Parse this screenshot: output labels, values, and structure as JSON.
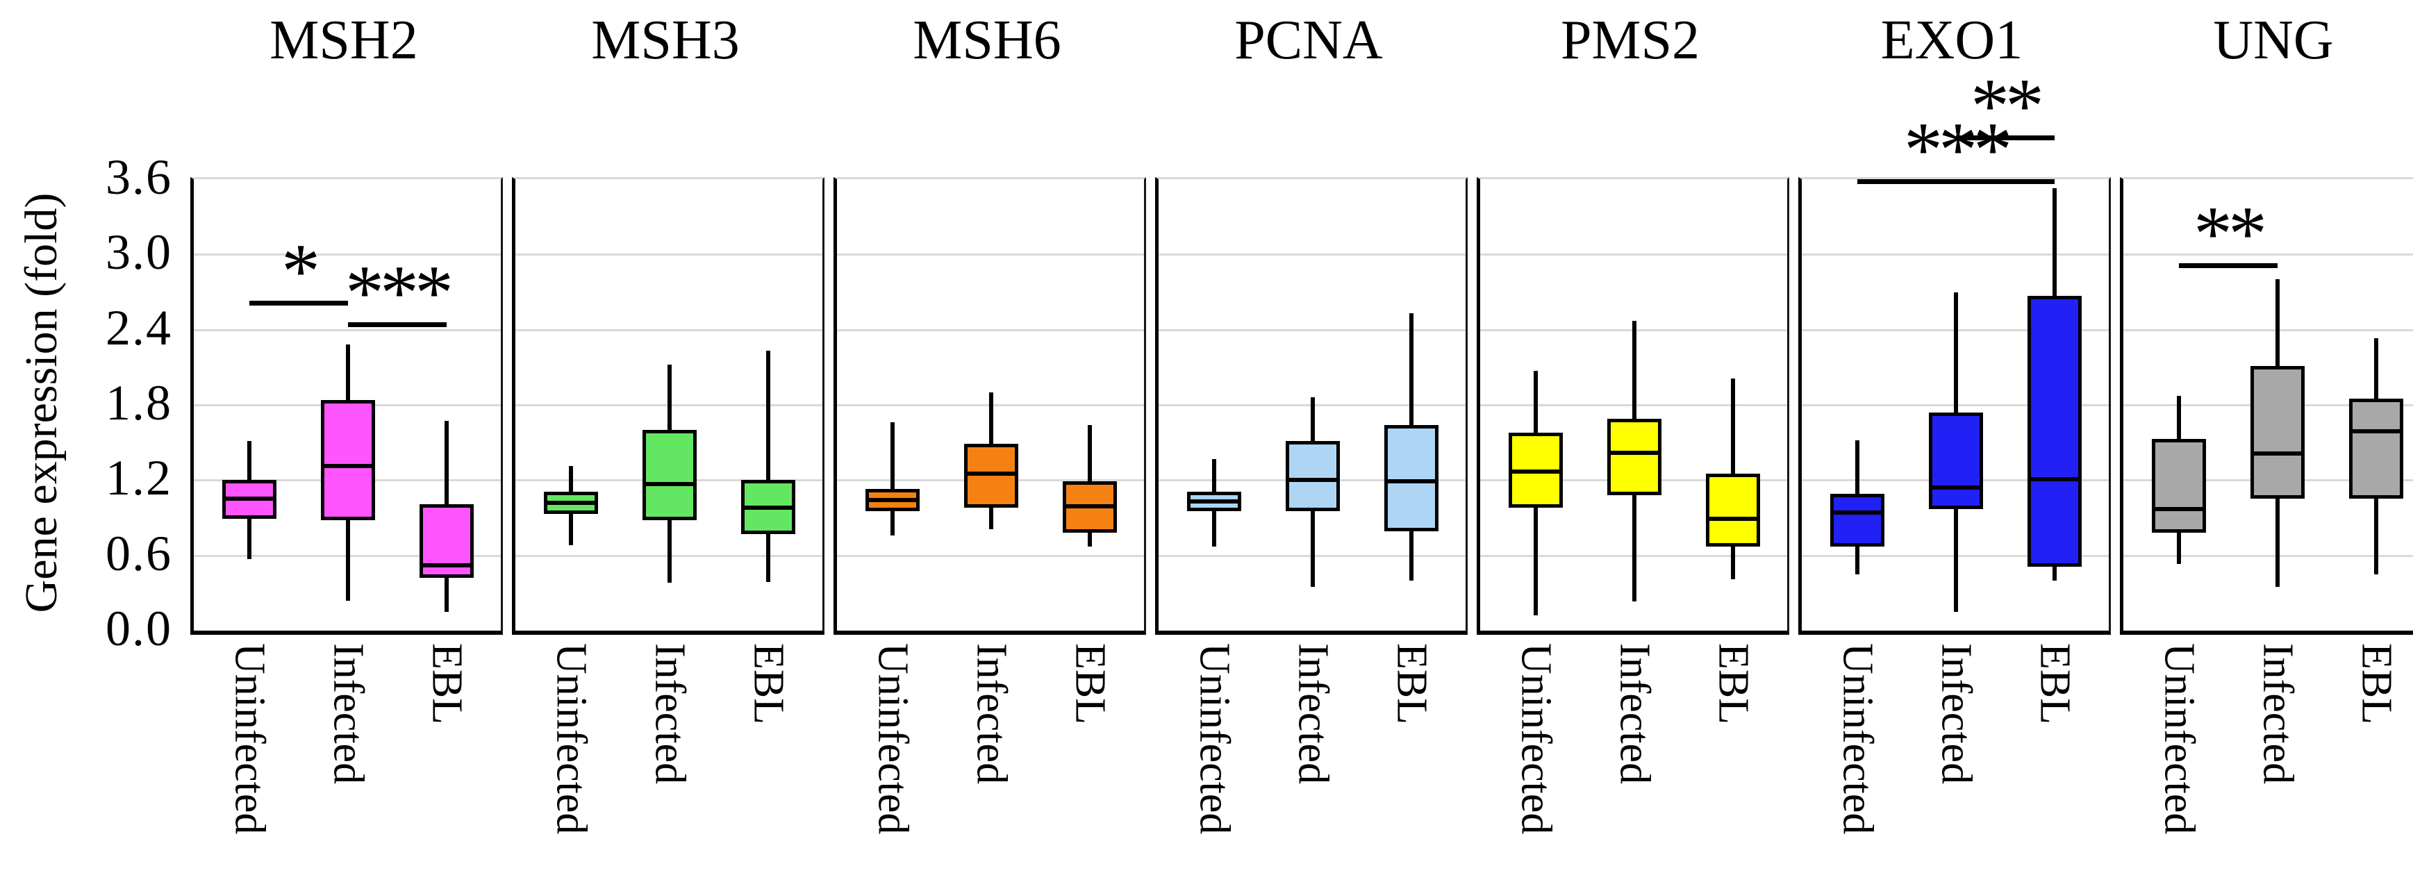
{
  "chart_data": {
    "type": "box",
    "title": "",
    "ylabel": "Gene expression (fold)",
    "xlabel": "",
    "ylim": [
      0.0,
      3.6
    ],
    "yticks": [
      0.0,
      0.6,
      1.2,
      1.8,
      2.4,
      3.0,
      3.6
    ],
    "ytick_labels": [
      "0.0",
      "0.6",
      "1.2",
      "1.8",
      "2.4",
      "3.0",
      "3.6"
    ],
    "grid": "horizontal light gray lines at each 0.6 step",
    "legend": "none",
    "gridline_color": "#d9d9d9",
    "categories": [
      "Uninfected",
      "Infected",
      "EBL"
    ],
    "panels": [
      {
        "gene": "MSH2",
        "color": "#FF55FF",
        "series": [
          {
            "category": "Uninfected",
            "low": 0.57,
            "q1": 0.89,
            "median": 1.05,
            "q3": 1.2,
            "high": 1.51
          },
          {
            "category": "Infected",
            "low": 0.24,
            "q1": 0.88,
            "median": 1.31,
            "q3": 1.84,
            "high": 2.28
          },
          {
            "category": "EBL",
            "low": 0.15,
            "q1": 0.42,
            "median": 0.52,
            "q3": 1.01,
            "high": 1.67
          }
        ],
        "significance": [
          {
            "label": "*",
            "from": "Uninfected",
            "to": "Infected",
            "y": 2.63
          },
          {
            "label": "***",
            "from": "Infected",
            "to": "EBL",
            "y": 2.46
          }
        ]
      },
      {
        "gene": "MSH3",
        "color": "#63E763",
        "series": [
          {
            "category": "Uninfected",
            "low": 0.68,
            "q1": 0.93,
            "median": 1.02,
            "q3": 1.11,
            "high": 1.31
          },
          {
            "category": "Infected",
            "low": 0.38,
            "q1": 0.88,
            "median": 1.17,
            "q3": 1.6,
            "high": 2.12
          },
          {
            "category": "EBL",
            "low": 0.39,
            "q1": 0.77,
            "median": 0.98,
            "q3": 1.2,
            "high": 2.23
          }
        ],
        "significance": []
      },
      {
        "gene": "MSH6",
        "color": "#F58113",
        "series": [
          {
            "category": "Uninfected",
            "low": 0.76,
            "q1": 0.95,
            "median": 1.04,
            "q3": 1.13,
            "high": 1.66
          },
          {
            "category": "Infected",
            "low": 0.81,
            "q1": 0.98,
            "median": 1.25,
            "q3": 1.49,
            "high": 1.9
          },
          {
            "category": "EBL",
            "low": 0.67,
            "q1": 0.78,
            "median": 0.99,
            "q3": 1.19,
            "high": 1.64
          }
        ],
        "significance": []
      },
      {
        "gene": "PCNA",
        "color": "#AED6F4",
        "series": [
          {
            "category": "Uninfected",
            "low": 0.67,
            "q1": 0.95,
            "median": 1.03,
            "q3": 1.11,
            "high": 1.37
          },
          {
            "category": "Infected",
            "low": 0.35,
            "q1": 0.95,
            "median": 1.2,
            "q3": 1.51,
            "high": 1.86
          },
          {
            "category": "EBL",
            "low": 0.4,
            "q1": 0.79,
            "median": 1.19,
            "q3": 1.64,
            "high": 2.53
          }
        ],
        "significance": []
      },
      {
        "gene": "PMS2",
        "color": "#FFFF00",
        "series": [
          {
            "category": "Uninfected",
            "low": 0.12,
            "q1": 0.98,
            "median": 1.27,
            "q3": 1.58,
            "high": 2.07
          },
          {
            "category": "Infected",
            "low": 0.23,
            "q1": 1.08,
            "median": 1.42,
            "q3": 1.69,
            "high": 2.47
          },
          {
            "category": "EBL",
            "low": 0.41,
            "q1": 0.67,
            "median": 0.89,
            "q3": 1.25,
            "high": 2.01
          }
        ],
        "significance": []
      },
      {
        "gene": "EXO1",
        "color": "#2121F5",
        "series": [
          {
            "category": "Uninfected",
            "low": 0.45,
            "q1": 0.67,
            "median": 0.94,
            "q3": 1.09,
            "high": 1.52
          },
          {
            "category": "Infected",
            "low": 0.15,
            "q1": 0.97,
            "median": 1.14,
            "q3": 1.74,
            "high": 2.7
          },
          {
            "category": "EBL",
            "low": 0.4,
            "q1": 0.51,
            "median": 1.21,
            "q3": 2.67,
            "high": 3.53
          }
        ],
        "significance": [
          {
            "label": "***",
            "from": "Uninfected",
            "to": "EBL",
            "y": 3.6
          },
          {
            "label": "**",
            "from": "Infected",
            "to": "EBL",
            "y": 3.95
          }
        ]
      },
      {
        "gene": "UNG",
        "color": "#A8A8A8",
        "series": [
          {
            "category": "Uninfected",
            "low": 0.53,
            "q1": 0.78,
            "median": 0.97,
            "q3": 1.53,
            "high": 1.87
          },
          {
            "category": "Infected",
            "low": 0.35,
            "q1": 1.05,
            "median": 1.41,
            "q3": 2.11,
            "high": 2.8
          },
          {
            "category": "EBL",
            "low": 0.45,
            "q1": 1.05,
            "median": 1.59,
            "q3": 1.85,
            "high": 2.33
          }
        ],
        "significance": [
          {
            "label": "**",
            "from": "Uninfected",
            "to": "Infected",
            "y": 2.93
          }
        ]
      }
    ]
  }
}
